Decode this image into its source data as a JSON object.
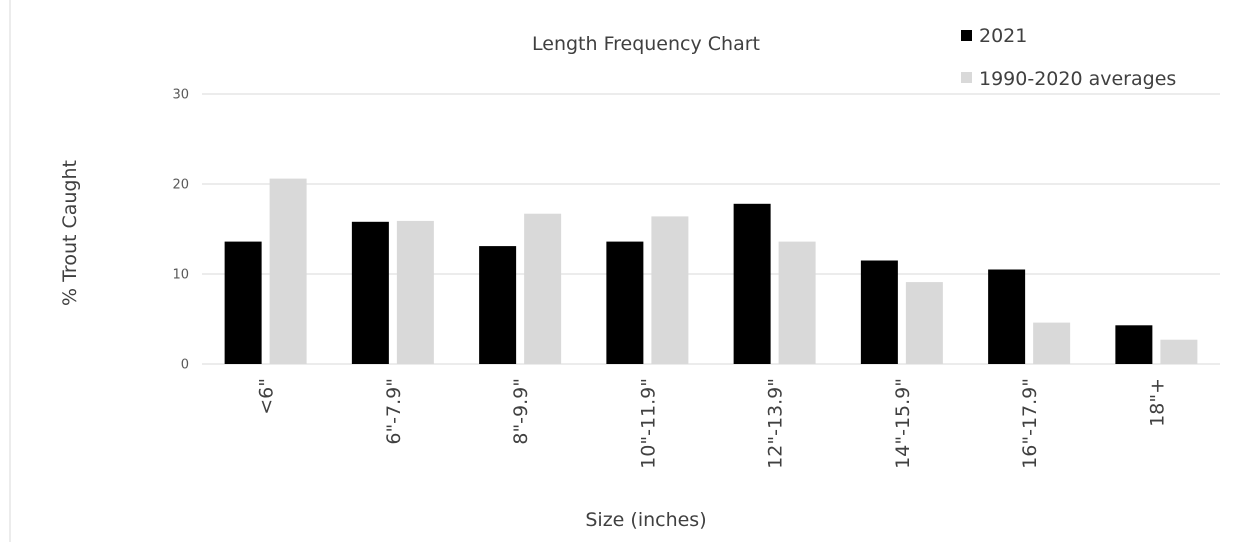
{
  "chart_data": {
    "type": "bar",
    "title": "Length Frequency Chart",
    "xlabel": "Size (inches)",
    "ylabel": "% Trout Caught",
    "ylim": [
      0,
      30
    ],
    "yticks": [
      0,
      10,
      20,
      30
    ],
    "grid": true,
    "legend_position": "top-right",
    "categories": [
      "<6\"",
      "6\"-7.9\"",
      "8\"-9.9\"",
      "10\"-11.9\"",
      "12\"-13.9\"",
      "14\"-15.9\"",
      "16\"-17.9\"",
      "18\"+"
    ],
    "series": [
      {
        "name": "2021",
        "color": "#000000",
        "values": [
          13.6,
          15.8,
          13.1,
          13.6,
          17.8,
          11.5,
          10.5,
          4.3
        ]
      },
      {
        "name": "1990-2020 averages",
        "color": "#d9d9d9",
        "values": [
          20.6,
          15.9,
          16.7,
          16.4,
          13.6,
          9.1,
          4.6,
          2.7
        ]
      }
    ]
  }
}
